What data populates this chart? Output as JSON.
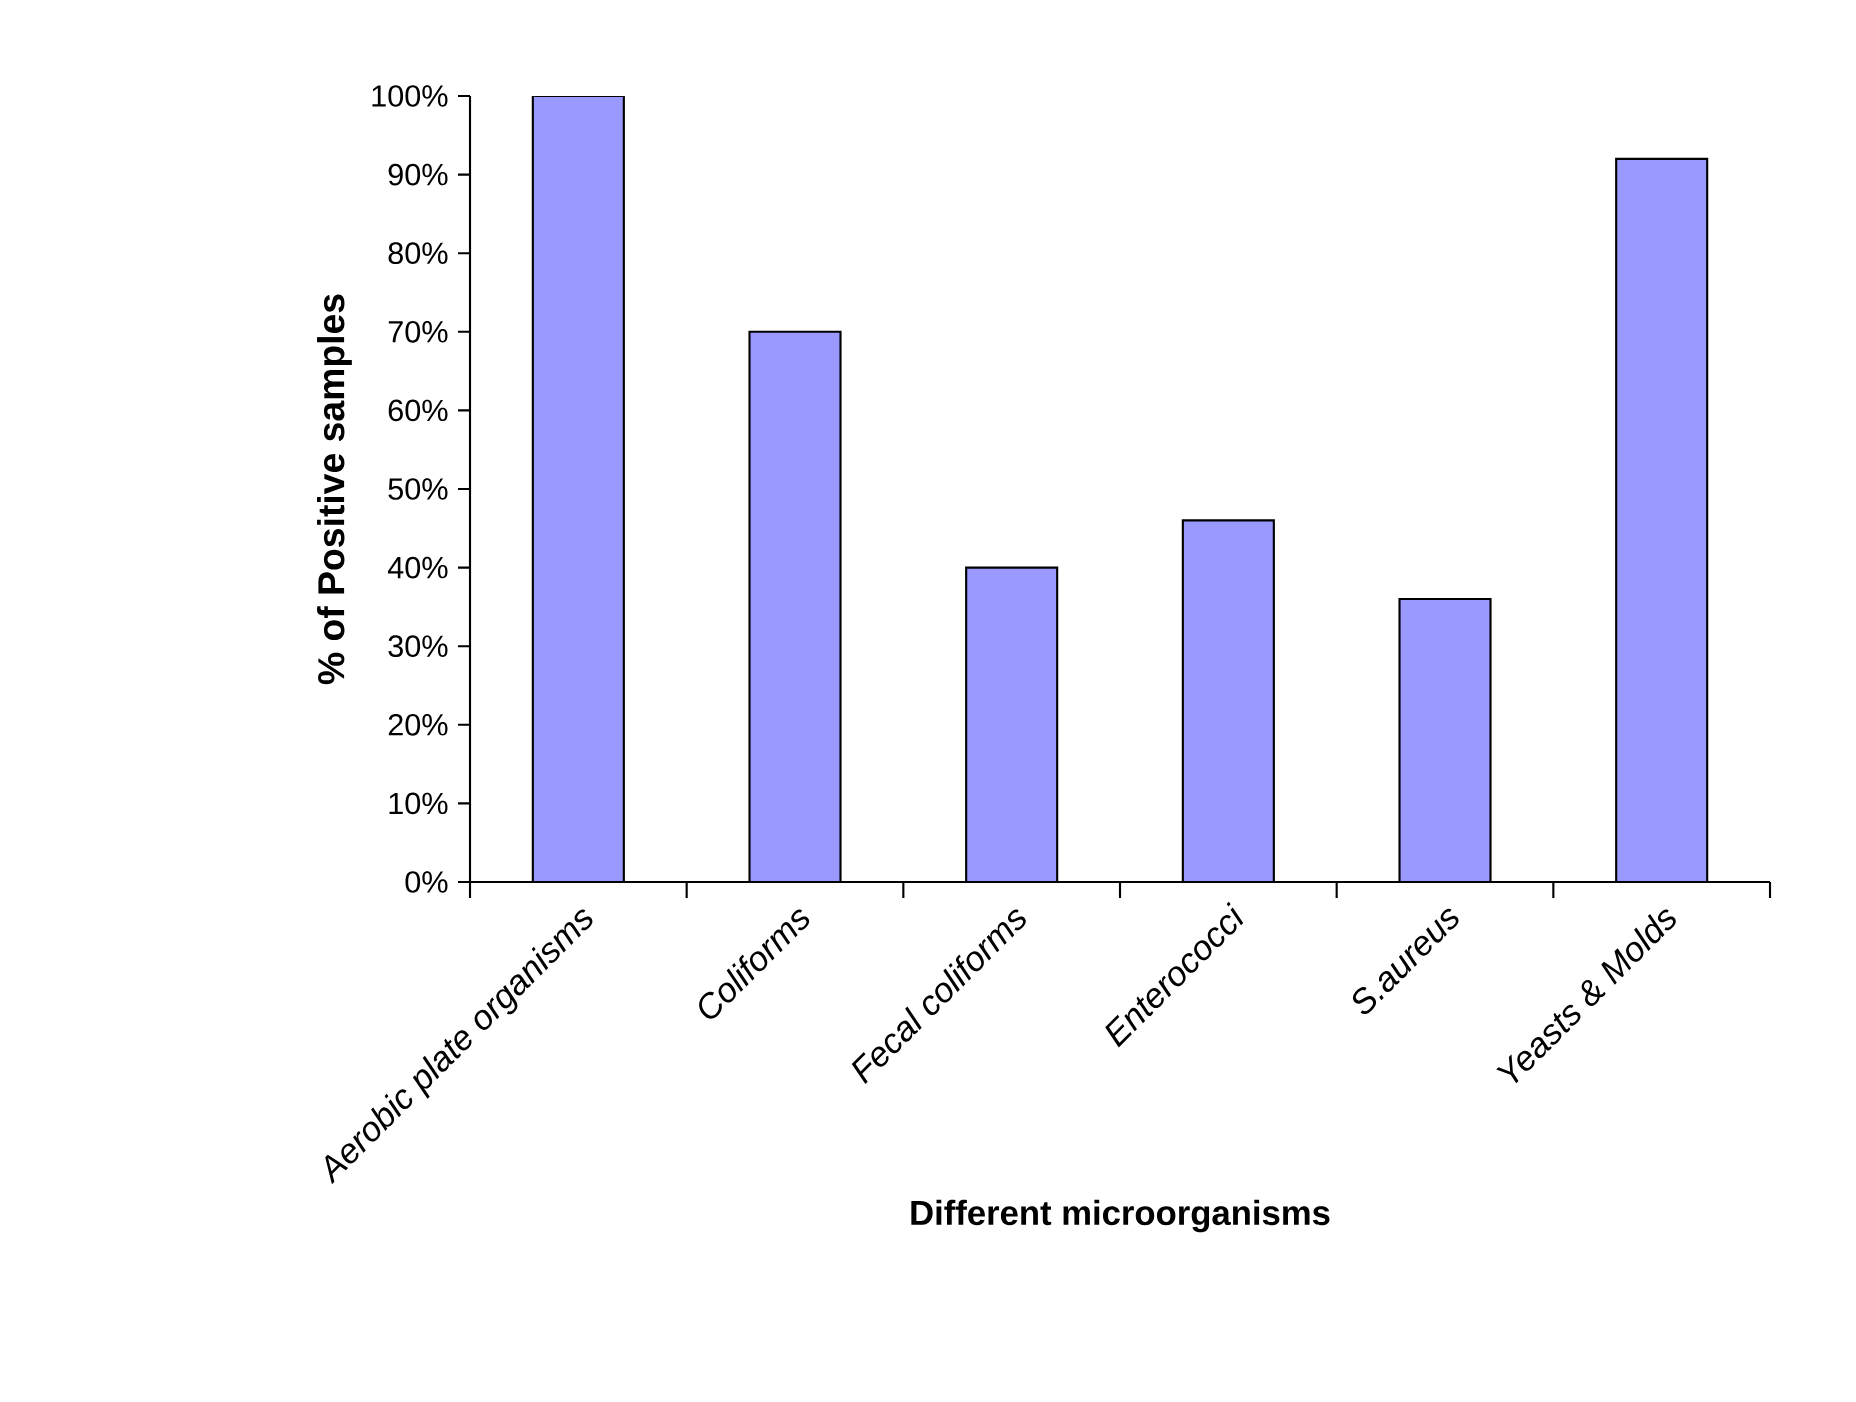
{
  "chart_data": {
    "type": "bar",
    "xlabel": "Different microorganisms",
    "ylabel": "% of Positive samples",
    "categories": [
      "Aerobic plate organisms",
      "Coliforms",
      "Fecal coliforms",
      "Enterococci",
      "S.aureus",
      "Yeasts & Molds"
    ],
    "values": [
      100,
      70,
      40,
      46,
      36,
      92
    ],
    "color": "#9999ff",
    "ylim": [
      0,
      100
    ],
    "yticks": [
      {
        "value": 0,
        "label": "0%"
      },
      {
        "value": 10,
        "label": "10%"
      },
      {
        "value": 20,
        "label": "20%"
      },
      {
        "value": 30,
        "label": "30%"
      },
      {
        "value": 40,
        "label": "40%"
      },
      {
        "value": 50,
        "label": "50%"
      },
      {
        "value": 60,
        "label": "60%"
      },
      {
        "value": 70,
        "label": "70%"
      },
      {
        "value": 80,
        "label": "80%"
      },
      {
        "value": 90,
        "label": "90%"
      },
      {
        "value": 100,
        "label": "100%"
      }
    ],
    "grid": false
  }
}
